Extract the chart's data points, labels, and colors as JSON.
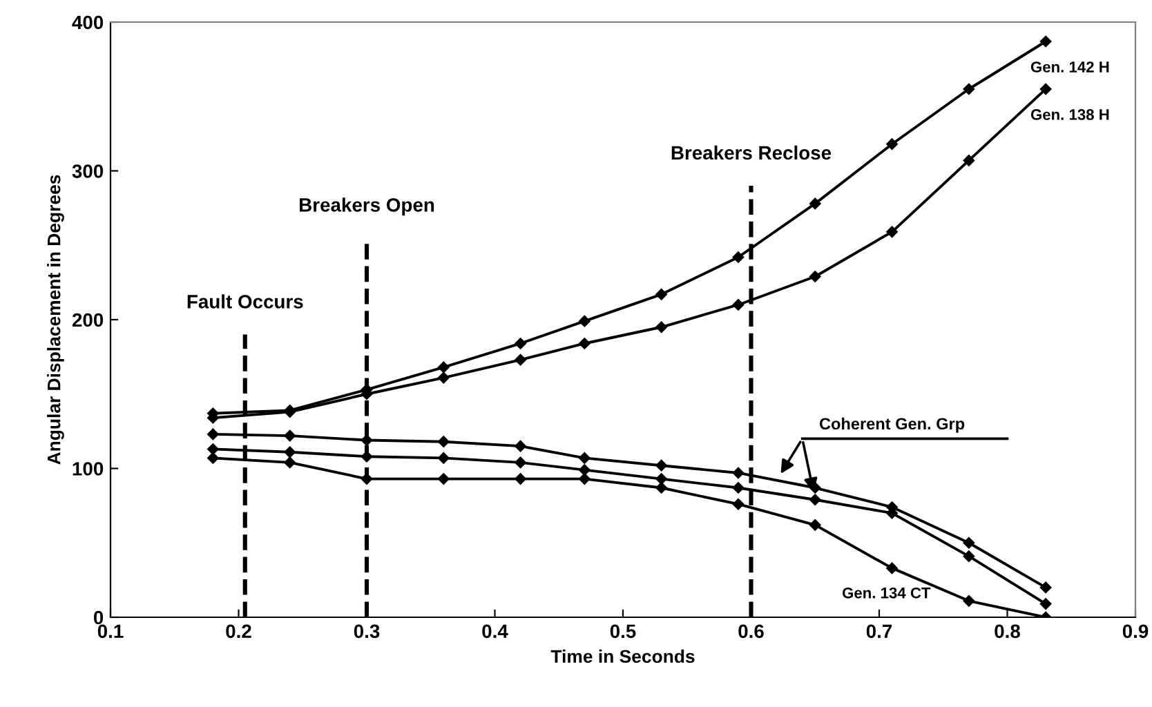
{
  "chart_data": {
    "type": "line",
    "xlabel": "Time in Seconds",
    "ylabel": "Angular Displacement in Degrees",
    "x": [
      0.18,
      0.24,
      0.3,
      0.36,
      0.42,
      0.47,
      0.53,
      0.59,
      0.65,
      0.71,
      0.77,
      0.83
    ],
    "series": [
      {
        "name": "Gen. 142 H",
        "color": "#000000",
        "values": [
          137,
          139,
          153,
          168,
          184,
          199,
          217,
          242,
          278,
          318,
          355,
          387
        ]
      },
      {
        "name": "Gen. 138 H",
        "color": "#000000",
        "values": [
          134,
          138,
          150,
          161,
          173,
          184,
          195,
          210,
          229,
          259,
          307,
          355
        ]
      },
      {
        "color": "#000000",
        "values": [
          123,
          122,
          119,
          118,
          115,
          107,
          102,
          97,
          87,
          74,
          50,
          20
        ]
      },
      {
        "color": "#000000",
        "values": [
          113,
          111,
          108,
          107,
          104,
          99,
          93,
          87,
          79,
          70,
          41,
          9
        ]
      },
      {
        "name": "Gen. 134 CT",
        "color": "#000000",
        "values": [
          107,
          104,
          93,
          93,
          93,
          93,
          87,
          76,
          62,
          33,
          11,
          0
        ]
      }
    ],
    "marker": "diamond",
    "line_style": "solid",
    "grid": false,
    "xlim": [
      0.1,
      0.9
    ],
    "xticks": [
      0.1,
      0.2,
      0.3,
      0.4,
      0.5,
      0.6,
      0.7,
      0.8,
      0.9
    ],
    "ylim": [
      0,
      400
    ],
    "yticks": [
      0,
      100,
      200,
      300,
      400
    ],
    "ref_lines": [
      {
        "axis": "x",
        "value": 0.205,
        "label": "Fault Occurs",
        "line_style": "dashed",
        "color": "#000000"
      },
      {
        "axis": "x",
        "value": 0.3,
        "label": "Breakers Open",
        "line_style": "dashed",
        "color": "#000000"
      },
      {
        "axis": "x",
        "value": 0.6,
        "label": "Breakers Reclose",
        "line_style": "dashed",
        "color": "#000000"
      }
    ],
    "annotations": [
      {
        "text": "Coherent Gen. Grp",
        "x": 0.65,
        "y": 79
      }
    ]
  }
}
